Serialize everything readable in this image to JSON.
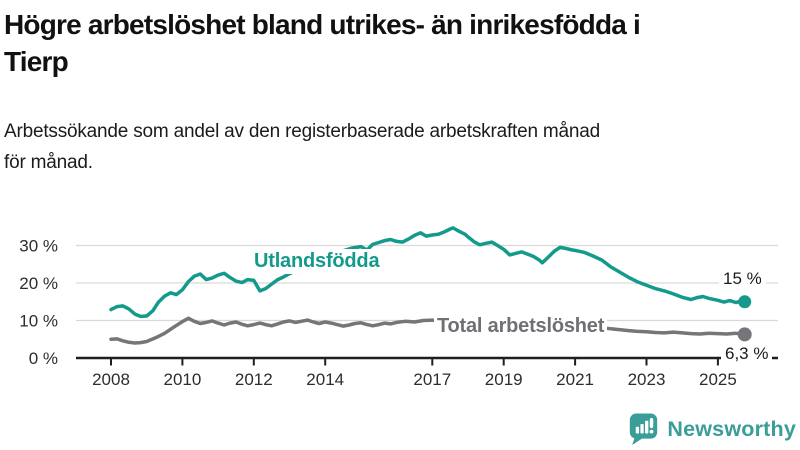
{
  "header": {
    "title_lines": [
      "Högre arbetslöshet bland utrikes- än inrikesfödda i",
      "Tierp"
    ],
    "subtitle_lines": [
      "Arbetssökande som andel av den registerbaserade arbetskraften månad",
      "för månad."
    ]
  },
  "colors": {
    "teal": "#149a8c",
    "gray": "#75757a",
    "gray_label": "#6f6f74",
    "grid": "#d9d9d9",
    "axis": "#1f1f1f",
    "brand_teal": "#3a9d97"
  },
  "chart_data": {
    "type": "line",
    "title": "Högre arbetslöshet bland utrikes- än inrikesfödda i Tierp",
    "subtitle": "Arbetssökande som andel av den registerbaserade arbetskraften månad för månad.",
    "xlabel": "",
    "ylabel": "",
    "x_range": [
      2008,
      2025.75
    ],
    "ylim": [
      0,
      36
    ],
    "grid": "horizontal",
    "legend_position": "inline-labels",
    "yticks": [
      {
        "value": 0,
        "label": "0 %"
      },
      {
        "value": 10,
        "label": "10 %"
      },
      {
        "value": 20,
        "label": "20 %"
      },
      {
        "value": 30,
        "label": "30 %"
      }
    ],
    "xticks": [
      {
        "year": 2008,
        "label": "2008"
      },
      {
        "year": 2010,
        "label": "2010"
      },
      {
        "year": 2012,
        "label": "2012"
      },
      {
        "year": 2014,
        "label": "2014"
      },
      {
        "year": 2017,
        "label": "2017"
      },
      {
        "year": 2019,
        "label": "2019"
      },
      {
        "year": 2021,
        "label": "2021"
      },
      {
        "year": 2023,
        "label": "2023"
      },
      {
        "year": 2025,
        "label": "2025"
      }
    ],
    "series": [
      {
        "name": "Utlandsfödda",
        "color": "#149a8c",
        "end_label": "15 %",
        "end_value": 15,
        "points": [
          [
            2008.0,
            12.9
          ],
          [
            2008.17,
            13.7
          ],
          [
            2008.33,
            13.9
          ],
          [
            2008.5,
            13.1
          ],
          [
            2008.67,
            11.7
          ],
          [
            2008.83,
            11.1
          ],
          [
            2009.0,
            11.2
          ],
          [
            2009.17,
            12.6
          ],
          [
            2009.33,
            14.9
          ],
          [
            2009.5,
            16.5
          ],
          [
            2009.67,
            17.4
          ],
          [
            2009.83,
            16.9
          ],
          [
            2010.0,
            18.2
          ],
          [
            2010.17,
            20.4
          ],
          [
            2010.33,
            21.8
          ],
          [
            2010.5,
            22.4
          ],
          [
            2010.67,
            20.9
          ],
          [
            2010.83,
            21.3
          ],
          [
            2011.0,
            22.1
          ],
          [
            2011.17,
            22.6
          ],
          [
            2011.33,
            21.5
          ],
          [
            2011.5,
            20.5
          ],
          [
            2011.67,
            20.1
          ],
          [
            2011.83,
            20.9
          ],
          [
            2012.0,
            20.7
          ],
          [
            2012.17,
            17.9
          ],
          [
            2012.33,
            18.5
          ],
          [
            2012.5,
            19.7
          ],
          [
            2012.67,
            20.9
          ],
          [
            2012.83,
            21.6
          ],
          [
            2013.0,
            22.5
          ],
          [
            2013.25,
            23.5
          ],
          [
            2013.5,
            24.6
          ],
          [
            2013.75,
            25.8
          ],
          [
            2014.0,
            26.8
          ],
          [
            2014.25,
            27.8
          ],
          [
            2014.5,
            28.6
          ],
          [
            2014.75,
            29.3
          ],
          [
            2015.0,
            29.7
          ],
          [
            2015.17,
            28.8
          ],
          [
            2015.33,
            30.3
          ],
          [
            2015.5,
            30.8
          ],
          [
            2015.67,
            31.3
          ],
          [
            2015.83,
            31.6
          ],
          [
            2016.0,
            31.1
          ],
          [
            2016.17,
            30.9
          ],
          [
            2016.33,
            31.7
          ],
          [
            2016.5,
            32.7
          ],
          [
            2016.67,
            33.4
          ],
          [
            2016.83,
            32.5
          ],
          [
            2017.0,
            32.8
          ],
          [
            2017.17,
            33.0
          ],
          [
            2017.33,
            33.6
          ],
          [
            2017.5,
            34.4
          ],
          [
            2017.58,
            34.7
          ],
          [
            2017.75,
            33.8
          ],
          [
            2017.92,
            33.0
          ],
          [
            2018.0,
            32.3
          ],
          [
            2018.17,
            31.0
          ],
          [
            2018.33,
            30.2
          ],
          [
            2018.5,
            30.6
          ],
          [
            2018.67,
            30.9
          ],
          [
            2018.83,
            30.0
          ],
          [
            2019.0,
            29.0
          ],
          [
            2019.17,
            27.5
          ],
          [
            2019.33,
            27.9
          ],
          [
            2019.5,
            28.3
          ],
          [
            2019.67,
            27.7
          ],
          [
            2019.83,
            27.1
          ],
          [
            2020.0,
            26.1
          ],
          [
            2020.08,
            25.4
          ],
          [
            2020.25,
            26.9
          ],
          [
            2020.42,
            28.5
          ],
          [
            2020.58,
            29.5
          ],
          [
            2020.75,
            29.2
          ],
          [
            2020.92,
            28.8
          ],
          [
            2021.0,
            28.7
          ],
          [
            2021.25,
            28.2
          ],
          [
            2021.5,
            27.2
          ],
          [
            2021.75,
            26.1
          ],
          [
            2022.0,
            24.3
          ],
          [
            2022.25,
            22.9
          ],
          [
            2022.5,
            21.5
          ],
          [
            2022.75,
            20.3
          ],
          [
            2023.0,
            19.4
          ],
          [
            2023.25,
            18.5
          ],
          [
            2023.5,
            17.9
          ],
          [
            2023.75,
            17.1
          ],
          [
            2024.0,
            16.2
          ],
          [
            2024.25,
            15.6
          ],
          [
            2024.42,
            16.1
          ],
          [
            2024.58,
            16.4
          ],
          [
            2024.75,
            15.9
          ],
          [
            2025.0,
            15.4
          ],
          [
            2025.17,
            14.9
          ],
          [
            2025.33,
            15.3
          ],
          [
            2025.5,
            14.8
          ],
          [
            2025.67,
            15.2
          ],
          [
            2025.75,
            15.0
          ]
        ]
      },
      {
        "name": "Total arbetslöshet",
        "color": "#75757a",
        "end_label": "6,3 %",
        "end_value": 6.3,
        "points": [
          [
            2008.0,
            5.0
          ],
          [
            2008.17,
            5.1
          ],
          [
            2008.33,
            4.6
          ],
          [
            2008.5,
            4.2
          ],
          [
            2008.67,
            4.0
          ],
          [
            2008.83,
            4.1
          ],
          [
            2009.0,
            4.4
          ],
          [
            2009.25,
            5.4
          ],
          [
            2009.5,
            6.6
          ],
          [
            2009.75,
            8.2
          ],
          [
            2010.0,
            9.7
          ],
          [
            2010.17,
            10.6
          ],
          [
            2010.33,
            9.8
          ],
          [
            2010.5,
            9.2
          ],
          [
            2010.67,
            9.5
          ],
          [
            2010.83,
            9.9
          ],
          [
            2011.0,
            9.3
          ],
          [
            2011.17,
            8.8
          ],
          [
            2011.33,
            9.3
          ],
          [
            2011.5,
            9.6
          ],
          [
            2011.67,
            9.0
          ],
          [
            2011.83,
            8.6
          ],
          [
            2012.0,
            8.9
          ],
          [
            2012.17,
            9.3
          ],
          [
            2012.33,
            8.9
          ],
          [
            2012.5,
            8.6
          ],
          [
            2012.67,
            9.1
          ],
          [
            2012.83,
            9.6
          ],
          [
            2013.0,
            9.9
          ],
          [
            2013.17,
            9.5
          ],
          [
            2013.33,
            9.8
          ],
          [
            2013.5,
            10.1
          ],
          [
            2013.67,
            9.6
          ],
          [
            2013.83,
            9.2
          ],
          [
            2014.0,
            9.6
          ],
          [
            2014.17,
            9.3
          ],
          [
            2014.33,
            8.9
          ],
          [
            2014.5,
            8.5
          ],
          [
            2014.67,
            8.8
          ],
          [
            2014.83,
            9.2
          ],
          [
            2015.0,
            9.4
          ],
          [
            2015.17,
            8.9
          ],
          [
            2015.33,
            8.6
          ],
          [
            2015.5,
            8.9
          ],
          [
            2015.67,
            9.3
          ],
          [
            2015.83,
            9.1
          ],
          [
            2016.0,
            9.5
          ],
          [
            2016.25,
            9.8
          ],
          [
            2016.5,
            9.6
          ],
          [
            2016.75,
            10.0
          ],
          [
            2017.0,
            10.1
          ],
          [
            2017.25,
            9.8
          ],
          [
            2017.5,
            9.5
          ],
          [
            2017.75,
            9.2
          ],
          [
            2018.0,
            8.9
          ],
          [
            2018.5,
            8.5
          ],
          [
            2019.0,
            8.2
          ],
          [
            2019.5,
            8.0
          ],
          [
            2020.0,
            8.4
          ],
          [
            2020.5,
            9.4
          ],
          [
            2021.0,
            9.0
          ],
          [
            2021.5,
            8.4
          ],
          [
            2022.0,
            7.8
          ],
          [
            2022.5,
            7.3
          ],
          [
            2022.75,
            7.1
          ],
          [
            2023.0,
            7.0
          ],
          [
            2023.25,
            6.8
          ],
          [
            2023.5,
            6.7
          ],
          [
            2023.75,
            6.9
          ],
          [
            2024.0,
            6.7
          ],
          [
            2024.25,
            6.5
          ],
          [
            2024.5,
            6.4
          ],
          [
            2024.75,
            6.6
          ],
          [
            2025.0,
            6.5
          ],
          [
            2025.25,
            6.4
          ],
          [
            2025.5,
            6.6
          ],
          [
            2025.75,
            6.3
          ]
        ]
      }
    ]
  },
  "footer": {
    "brand": "Newsworthy"
  }
}
